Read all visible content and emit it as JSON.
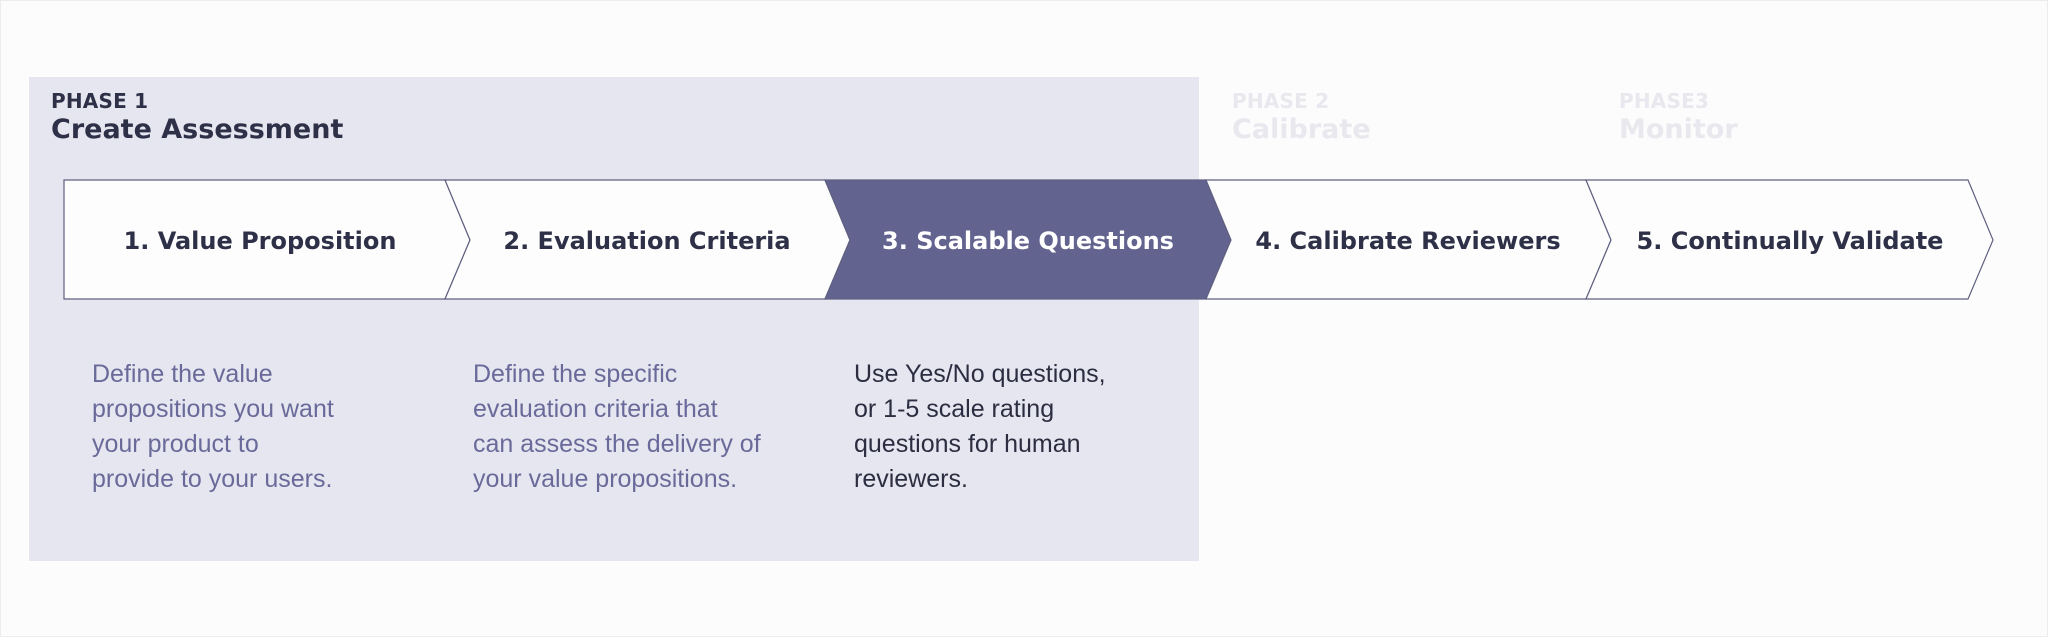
{
  "phases": [
    {
      "tag": "PHASE 1",
      "name": "Create Assessment"
    },
    {
      "tag": "PHASE 2",
      "name": "Calibrate"
    },
    {
      "tag": "PHASE3",
      "name": "Monitor"
    }
  ],
  "steps": [
    {
      "label": "1. Value Proposition",
      "active": false
    },
    {
      "label": "2. Evaluation Criteria",
      "active": false
    },
    {
      "label": "3. Scalable Questions",
      "active": true
    },
    {
      "label": "4. Calibrate Reviewers",
      "active": false
    },
    {
      "label": "5. Continually Validate",
      "active": false
    }
  ],
  "descriptions": [
    {
      "lines": [
        "Define the value",
        "propositions you want",
        "your product to",
        "provide to your users."
      ]
    },
    {
      "lines": [
        "Define the specific",
        "evaluation criteria that",
        "can assess the delivery of",
        "your value propositions."
      ]
    },
    {
      "lines": [
        "Use Yes/No questions,",
        "or 1-5 scale rating",
        "questions for human",
        "reviewers."
      ]
    }
  ],
  "colors": {
    "phase1_bg": "#e6e6f0",
    "active_fill": "#636390",
    "inactive_fill": "#fdfdfd",
    "stroke": "#5f6080",
    "dark_text": "#2e3048",
    "muted_text": "#6a6a9a",
    "faded_text": "#e8e8ee"
  }
}
